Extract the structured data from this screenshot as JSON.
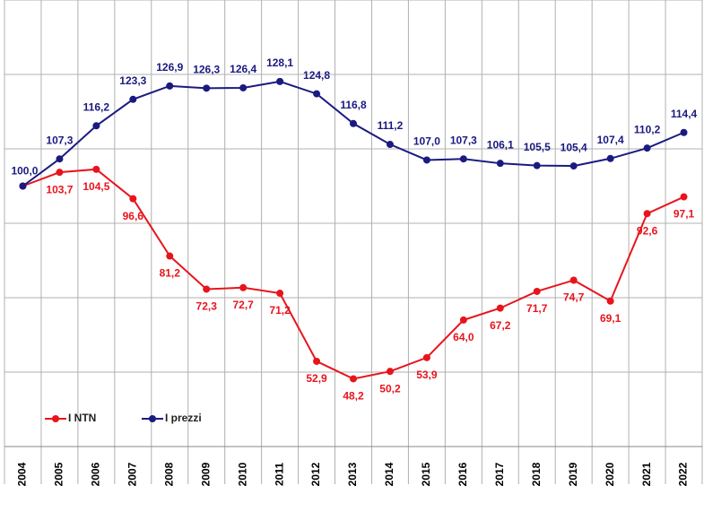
{
  "chart_data": {
    "type": "line",
    "categories": [
      "2004",
      "2005",
      "2006",
      "2007",
      "2008",
      "2009",
      "2010",
      "2011",
      "2012",
      "2013",
      "2014",
      "2015",
      "2016",
      "2017",
      "2018",
      "2019",
      "2020",
      "2021",
      "2022"
    ],
    "series": [
      {
        "name": "I NTN",
        "color": "#e8141c",
        "values": [
          100.0,
          103.7,
          104.5,
          96.6,
          81.2,
          72.3,
          72.7,
          71.2,
          52.9,
          48.2,
          50.2,
          53.9,
          64.0,
          67.2,
          71.7,
          74.7,
          69.1,
          92.6,
          97.1
        ],
        "value_labels": [
          null,
          "103,7",
          "104,5",
          "96,6",
          "81,2",
          "72,3",
          "72,7",
          "71,2",
          "52,9",
          "48,2",
          "50,2",
          "53,9",
          "64,0",
          "67,2",
          "71,7",
          "74,7",
          "69,1",
          "92,6",
          "97,1"
        ]
      },
      {
        "name": "I prezzi",
        "color": "#1a1a80",
        "values": [
          100.0,
          107.3,
          116.2,
          123.3,
          126.9,
          126.3,
          126.4,
          128.1,
          124.8,
          116.8,
          111.2,
          107.0,
          107.3,
          106.1,
          105.5,
          105.4,
          107.4,
          110.2,
          114.4
        ],
        "value_labels": [
          "100,0",
          "107,3",
          "116,2",
          "123,3",
          "126,9",
          "126,3",
          "126,4",
          "128,1",
          "124,8",
          "116,8",
          "111,2",
          "107,0",
          "107,3",
          "106,1",
          "105,5",
          "105,4",
          "107,4",
          "110,2",
          "114,4"
        ]
      }
    ],
    "ylim": [
      30,
      150
    ],
    "yticks": [
      30,
      50,
      70,
      90,
      110,
      130,
      150
    ],
    "grid": true,
    "legend": "bottom-left"
  }
}
